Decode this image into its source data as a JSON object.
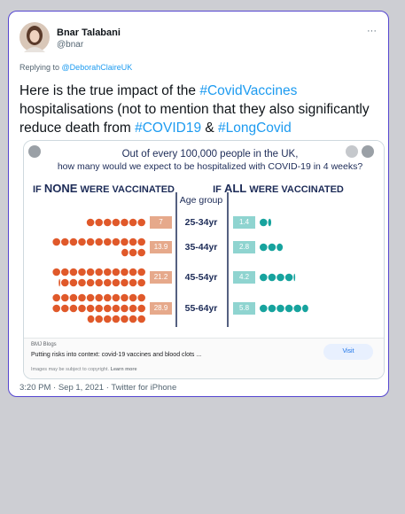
{
  "author": {
    "name": "Bnar Talabani",
    "handle": "@bnar"
  },
  "more": "···",
  "reply": {
    "prefix": "Replying to",
    "to": "@DeborahClaireUK"
  },
  "tweet": {
    "parts": [
      "Here is the true impact of the ",
      "#CovidVaccines",
      " hospitalisations (not to mention that they also significantly reduce death from ",
      "#COVID19",
      " & ",
      "#LongCovid"
    ]
  },
  "infographic": {
    "title": [
      "Out of every 100,000 people in the UK,",
      "how many would we expect to be hospitalized with COVID-19 in 4 weeks?"
    ],
    "left_header": [
      "IF",
      "NONE",
      "WERE VACCINATED"
    ],
    "middle_header": "Age group",
    "right_header": [
      "IF",
      "ALL",
      "WERE VACCINATED"
    ],
    "rows": [
      {
        "age": "25-34yr",
        "none": 7,
        "all": 1.4
      },
      {
        "age": "35-44yr",
        "none": 13.9,
        "all": 2.8
      },
      {
        "age": "45-54yr",
        "none": 21.2,
        "all": 4.2
      },
      {
        "age": "55-64yr",
        "none": 28.9,
        "all": 5.8
      }
    ]
  },
  "link_card": {
    "source": "BMJ Blogs",
    "title": "Putting risks into context: covid-19 vaccines and blood clots ...",
    "button": "Visit",
    "notice": "Images may be subject to copyright.",
    "learn_more": "Learn more"
  },
  "footer": "3:20 PM · Sep 1, 2021 · Twitter for iPhone"
}
